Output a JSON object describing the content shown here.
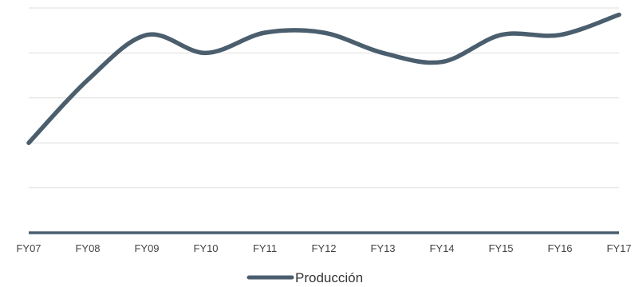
{
  "chart_data": {
    "type": "line",
    "title": "",
    "xlabel": "",
    "ylabel": "",
    "categories": [
      "FY07",
      "FY08",
      "FY09",
      "FY10",
      "FY11",
      "FY12",
      "FY13",
      "FY14",
      "FY15",
      "FY16",
      "FY17"
    ],
    "series": [
      {
        "name": "Producción",
        "values": [
          2.0,
          3.4,
          4.4,
          4.0,
          4.45,
          4.45,
          4.0,
          3.8,
          4.4,
          4.4,
          4.85
        ],
        "color": "#4a5e6e"
      }
    ],
    "ylim": [
      0,
      5
    ],
    "grid": true,
    "y_tick_labels_visible": false,
    "legend": "bottom-center"
  }
}
